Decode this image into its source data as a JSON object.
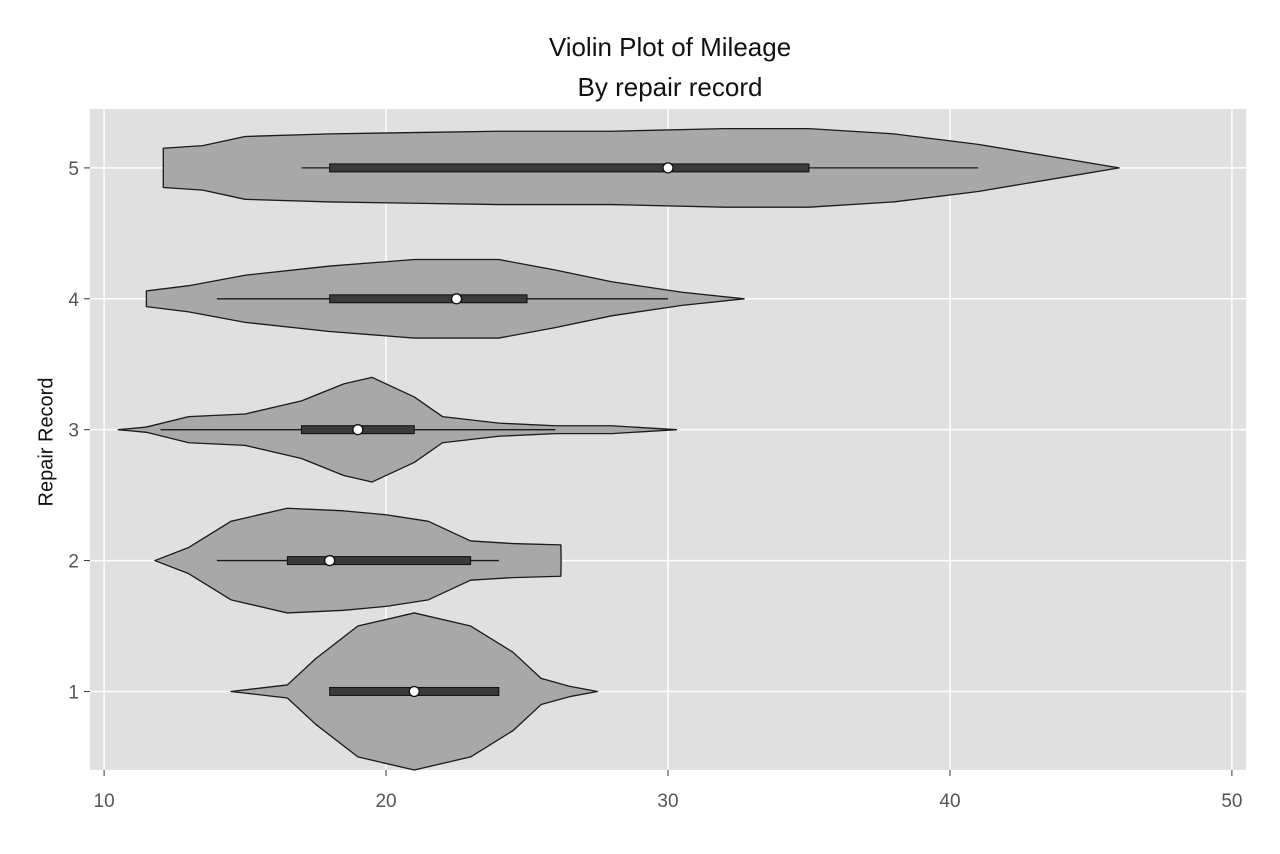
{
  "chart_data": {
    "type": "violin",
    "title": "Violin Plot of Mileage",
    "subtitle": "By repair record",
    "xlabel": "",
    "ylabel": "Repair Record",
    "xlim": [
      9.5,
      50.5
    ],
    "ylim": [
      0.4,
      5.45
    ],
    "xticks": [
      10,
      20,
      30,
      40,
      50
    ],
    "yticks": [
      1,
      2,
      3,
      4,
      5
    ],
    "grid": true,
    "orientation": "horizontal",
    "colors": {
      "panel": "#e0e0e0",
      "violin_fill": "#a8a8a8",
      "violin_stroke": "#1a1a1a",
      "box_fill": "#3a3a3a",
      "median_marker": "#ffffff",
      "grid": "#ffffff",
      "text": "#111111"
    },
    "violins": [
      {
        "category": "1",
        "median": 21,
        "q1": 18,
        "q3": 24,
        "whisker_low": 18,
        "whisker_high": 24,
        "density": [
          [
            14.5,
            0
          ],
          [
            16.5,
            0.05
          ],
          [
            17.5,
            0.25
          ],
          [
            19,
            0.5
          ],
          [
            21,
            0.6
          ],
          [
            23,
            0.5
          ],
          [
            24.5,
            0.3
          ],
          [
            25.5,
            0.1
          ],
          [
            26.5,
            0.04
          ],
          [
            27.5,
            0
          ]
        ]
      },
      {
        "category": "2",
        "median": 18,
        "q1": 16.5,
        "q3": 23,
        "whisker_low": 14,
        "whisker_high": 24,
        "density": [
          [
            11.8,
            0
          ],
          [
            13,
            0.1
          ],
          [
            14.5,
            0.3
          ],
          [
            16.5,
            0.4
          ],
          [
            18.5,
            0.38
          ],
          [
            20,
            0.35
          ],
          [
            21.5,
            0.3
          ],
          [
            23,
            0.15
          ],
          [
            24.5,
            0.13
          ],
          [
            26.2,
            0.12
          ],
          [
            26.21,
            0
          ]
        ]
      },
      {
        "category": "3",
        "median": 19,
        "q1": 17,
        "q3": 21,
        "whisker_low": 12,
        "whisker_high": 26,
        "density": [
          [
            10.5,
            0
          ],
          [
            11.5,
            0.02
          ],
          [
            13,
            0.1
          ],
          [
            15,
            0.12
          ],
          [
            17,
            0.22
          ],
          [
            18.5,
            0.35
          ],
          [
            19.5,
            0.4
          ],
          [
            21,
            0.25
          ],
          [
            22,
            0.1
          ],
          [
            24,
            0.05
          ],
          [
            26,
            0.03
          ],
          [
            28,
            0.03
          ],
          [
            30.3,
            0
          ]
        ]
      },
      {
        "category": "4",
        "median": 22.5,
        "q1": 18,
        "q3": 25,
        "whisker_low": 14,
        "whisker_high": 30,
        "density": [
          [
            11.5,
            0.06
          ],
          [
            13,
            0.1
          ],
          [
            15,
            0.18
          ],
          [
            18,
            0.25
          ],
          [
            21,
            0.3
          ],
          [
            24,
            0.3
          ],
          [
            26,
            0.22
          ],
          [
            28,
            0.13
          ],
          [
            30.5,
            0.05
          ],
          [
            32.7,
            0
          ]
        ]
      },
      {
        "category": "5",
        "median": 30,
        "q1": 18,
        "q3": 35,
        "whisker_low": 17,
        "whisker_high": 41,
        "density": [
          [
            12.1,
            0.15
          ],
          [
            13.5,
            0.17
          ],
          [
            15,
            0.24
          ],
          [
            18,
            0.26
          ],
          [
            21,
            0.27
          ],
          [
            24,
            0.28
          ],
          [
            28,
            0.28
          ],
          [
            32,
            0.3
          ],
          [
            35,
            0.3
          ],
          [
            38,
            0.26
          ],
          [
            41,
            0.18
          ],
          [
            43.5,
            0.09
          ],
          [
            46,
            0
          ]
        ]
      }
    ]
  }
}
